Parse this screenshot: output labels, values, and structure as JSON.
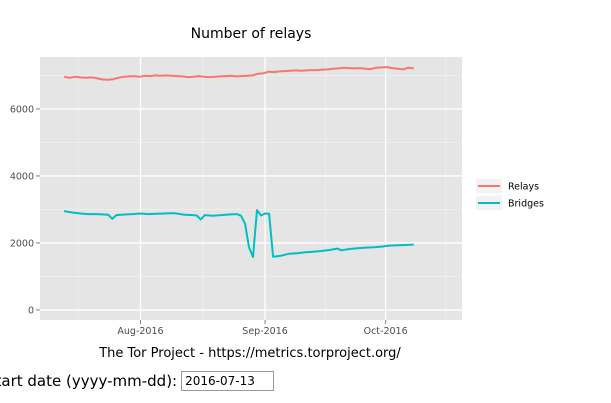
{
  "chart_data": {
    "type": "line",
    "title": "Number of relays",
    "xlabel": "",
    "ylabel": "",
    "x_ticks": [
      "Aug-2016",
      "Sep-2016",
      "Oct-2016"
    ],
    "y_ticks": [
      0,
      2000,
      4000,
      6000
    ],
    "ylim": [
      -300,
      7550
    ],
    "xlim_days": [
      -6,
      99
    ],
    "x_tick_days": [
      19,
      50,
      80
    ],
    "start_date": "2016-07-13",
    "grid": true,
    "legend_position": "right",
    "series": [
      {
        "name": "Relays",
        "color": "#F8766D",
        "values": [
          6960,
          6930,
          6960,
          6940,
          6930,
          6940,
          6920,
          6880,
          6870,
          6880,
          6930,
          6960,
          6970,
          6980,
          6960,
          6990,
          6980,
          7000,
          6990,
          7000,
          6990,
          6980,
          6970,
          6950,
          6960,
          6980,
          6960,
          6950,
          6960,
          6970,
          6980,
          6990,
          6970,
          6980,
          6990,
          7000,
          7050,
          7060,
          7110,
          7100,
          7120,
          7130,
          7140,
          7150,
          7140,
          7150,
          7160,
          7160,
          7170,
          7180,
          7200,
          7210,
          7230,
          7220,
          7210,
          7220,
          7200,
          7190,
          7230,
          7240,
          7250,
          7220,
          7200,
          7180,
          7230,
          7210
        ]
      },
      {
        "name": "Bridges",
        "color": "#00BFC4",
        "points": [
          [
            0,
            2950
          ],
          [
            2,
            2910
          ],
          [
            4,
            2880
          ],
          [
            6,
            2860
          ],
          [
            8,
            2860
          ],
          [
            10,
            2850
          ],
          [
            11,
            2840
          ],
          [
            12,
            2720
          ],
          [
            13,
            2830
          ],
          [
            15,
            2850
          ],
          [
            17,
            2860
          ],
          [
            19,
            2880
          ],
          [
            21,
            2860
          ],
          [
            23,
            2870
          ],
          [
            25,
            2880
          ],
          [
            27,
            2890
          ],
          [
            28,
            2880
          ],
          [
            30,
            2840
          ],
          [
            32,
            2830
          ],
          [
            33,
            2820
          ],
          [
            34,
            2700
          ],
          [
            35,
            2830
          ],
          [
            37,
            2810
          ],
          [
            39,
            2830
          ],
          [
            41,
            2850
          ],
          [
            43,
            2860
          ],
          [
            44,
            2810
          ],
          [
            45,
            2580
          ],
          [
            46,
            1870
          ],
          [
            47,
            1580
          ],
          [
            48,
            2980
          ],
          [
            49,
            2820
          ],
          [
            50,
            2880
          ],
          [
            51,
            2870
          ],
          [
            52,
            1590
          ],
          [
            54,
            1620
          ],
          [
            56,
            1680
          ],
          [
            58,
            1690
          ],
          [
            60,
            1720
          ],
          [
            62,
            1740
          ],
          [
            64,
            1760
          ],
          [
            66,
            1790
          ],
          [
            68,
            1830
          ],
          [
            69,
            1780
          ],
          [
            71,
            1820
          ],
          [
            73,
            1840
          ],
          [
            75,
            1860
          ],
          [
            77,
            1870
          ],
          [
            79,
            1890
          ],
          [
            81,
            1920
          ],
          [
            83,
            1930
          ],
          [
            85,
            1940
          ],
          [
            87,
            1950
          ]
        ]
      }
    ]
  },
  "footer": {
    "caption": "The Tor Project - https://metrics.torproject.org/",
    "start_date_label": "Start date (yyyy-mm-dd):",
    "start_date_value": "2016-07-13"
  }
}
